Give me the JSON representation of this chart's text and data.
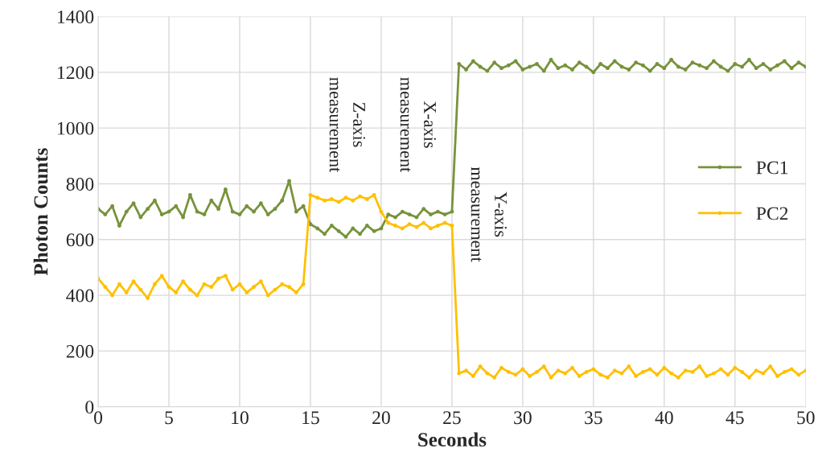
{
  "chart_data": {
    "type": "line",
    "xlabel": "Seconds",
    "ylabel": "Photon Counts",
    "x": [
      0,
      0.5,
      1,
      1.5,
      2,
      2.5,
      3,
      3.5,
      4,
      4.5,
      5,
      5.5,
      6,
      6.5,
      7,
      7.5,
      8,
      8.5,
      9,
      9.5,
      10,
      10.5,
      11,
      11.5,
      12,
      12.5,
      13,
      13.5,
      14,
      14.5,
      15,
      15.5,
      16,
      16.5,
      17,
      17.5,
      18,
      18.5,
      19,
      19.5,
      20,
      20.5,
      21,
      21.5,
      22,
      22.5,
      23,
      23.5,
      24,
      24.5,
      25,
      25.5,
      26,
      26.5,
      27,
      27.5,
      28,
      28.5,
      29,
      29.5,
      30,
      30.5,
      31,
      31.5,
      32,
      32.5,
      33,
      33.5,
      34,
      34.5,
      35,
      35.5,
      36,
      36.5,
      37,
      37.5,
      38,
      38.5,
      39,
      39.5,
      40,
      40.5,
      41,
      41.5,
      42,
      42.5,
      43,
      43.5,
      44,
      44.5,
      45,
      45.5,
      46,
      46.5,
      47,
      47.5,
      48,
      48.5,
      49,
      49.5,
      50
    ],
    "series": [
      {
        "name": "PC1",
        "color": "#77933c",
        "values": [
          710,
          690,
          720,
          650,
          700,
          730,
          680,
          710,
          740,
          690,
          700,
          720,
          680,
          760,
          700,
          690,
          740,
          710,
          780,
          700,
          690,
          720,
          700,
          730,
          690,
          710,
          740,
          810,
          700,
          720,
          655,
          640,
          620,
          650,
          630,
          610,
          640,
          620,
          650,
          630,
          640,
          690,
          680,
          700,
          690,
          680,
          710,
          690,
          700,
          690,
          700,
          1230,
          1210,
          1240,
          1220,
          1205,
          1235,
          1215,
          1225,
          1240,
          1210,
          1220,
          1230,
          1205,
          1245,
          1215,
          1225,
          1210,
          1235,
          1220,
          1200,
          1230,
          1215,
          1240,
          1220,
          1210,
          1235,
          1225,
          1205,
          1230,
          1215,
          1245,
          1220,
          1210,
          1235,
          1225,
          1215,
          1240,
          1220,
          1205,
          1230,
          1220,
          1245,
          1215,
          1230,
          1210,
          1225,
          1240,
          1215,
          1235,
          1220
        ]
      },
      {
        "name": "PC2",
        "color": "#ffc000",
        "values": [
          460,
          430,
          400,
          440,
          410,
          450,
          420,
          390,
          440,
          470,
          430,
          410,
          450,
          420,
          400,
          440,
          430,
          460,
          470,
          420,
          440,
          410,
          430,
          450,
          400,
          420,
          440,
          430,
          410,
          440,
          760,
          750,
          740,
          745,
          735,
          750,
          740,
          755,
          745,
          760,
          700,
          660,
          650,
          640,
          655,
          645,
          660,
          640,
          650,
          660,
          650,
          120,
          130,
          110,
          145,
          120,
          105,
          140,
          125,
          115,
          135,
          110,
          125,
          145,
          105,
          130,
          120,
          140,
          110,
          125,
          135,
          115,
          105,
          130,
          120,
          145,
          110,
          125,
          135,
          115,
          140,
          120,
          105,
          130,
          125,
          145,
          110,
          120,
          135,
          115,
          140,
          125,
          105,
          130,
          120,
          145,
          110,
          125,
          135,
          115,
          130
        ]
      }
    ],
    "xlim": [
      0,
      50
    ],
    "xticks": [
      0,
      5,
      10,
      15,
      20,
      25,
      30,
      35,
      40,
      45,
      50
    ],
    "ylim": [
      0,
      1400
    ],
    "yticks": [
      0,
      200,
      400,
      600,
      800,
      1000,
      1200,
      1400
    ],
    "annotations": [
      "Z-axis\nmeasurement",
      "X-axis\nmeasurement",
      "Y-axis\nmeasurement"
    ],
    "grid": true,
    "legend": "right",
    "marker": "circle",
    "line_style": "solid"
  }
}
